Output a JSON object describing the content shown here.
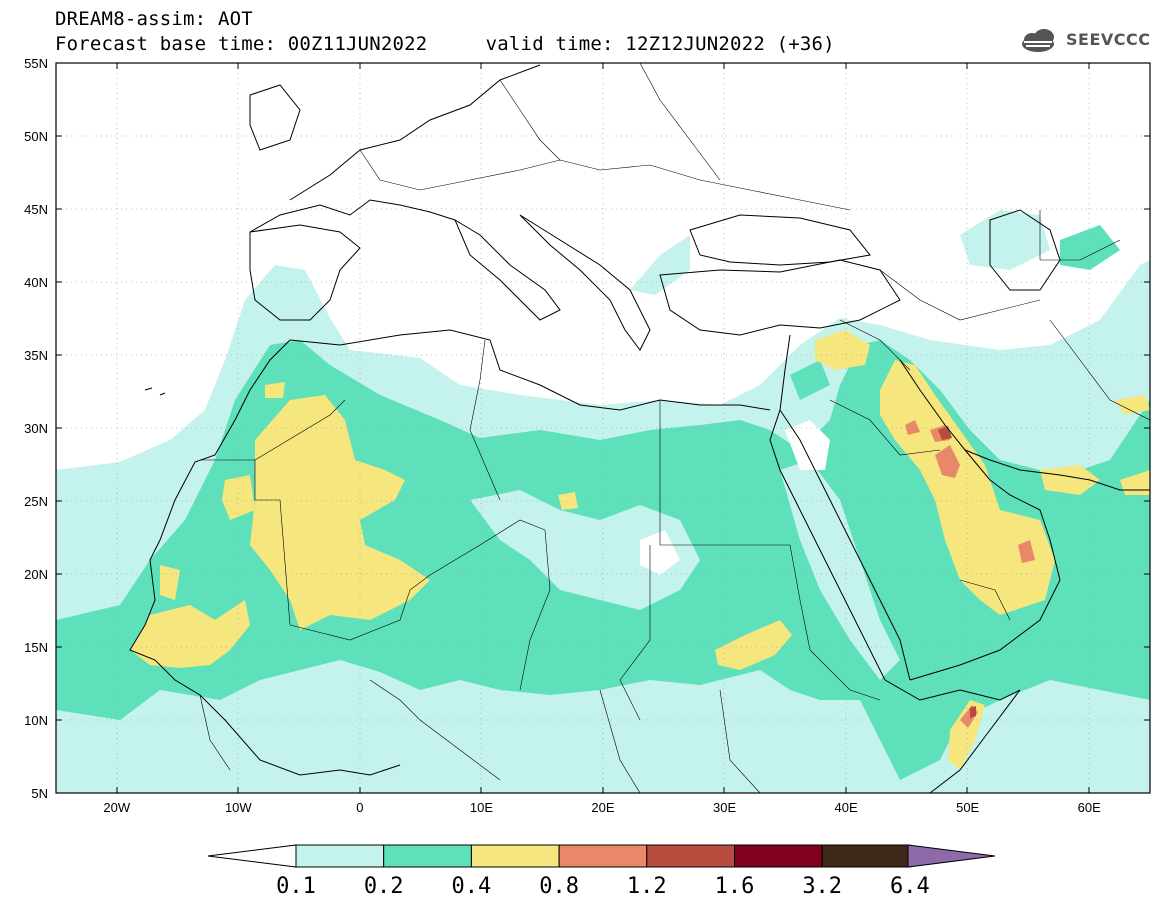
{
  "title": {
    "line1": "DREAM8-assim: AOT",
    "line2": "Forecast base time: 00Z11JUN2022     valid time: 12Z12JUN2022 (+36)"
  },
  "logo": {
    "text": "SEEVCCC",
    "icon": "cloud-icon"
  },
  "map": {
    "lon_range": [
      -25,
      65
    ],
    "lat_range": [
      5,
      55
    ],
    "lat_ticks": [
      "5N",
      "10N",
      "15N",
      "20N",
      "25N",
      "30N",
      "35N",
      "40N",
      "45N",
      "50N",
      "55N"
    ],
    "lon_ticks": [
      "20W",
      "10W",
      "0",
      "10E",
      "20E",
      "30E",
      "40E",
      "50E",
      "60E"
    ],
    "colors": {
      "c1": "#c4f2ec",
      "c2": "#5ee0bb",
      "c3": "#f6e67e",
      "c4": "#e9876a",
      "c5": "#b54c3e",
      "c6": "#800020",
      "c7": "#3d2817",
      "c8": "#8e6aa8"
    }
  },
  "colorbar": {
    "labels": [
      "0.1",
      "0.2",
      "0.4",
      "0.8",
      "1.2",
      "1.6",
      "3.2",
      "6.4"
    ],
    "colors": [
      "#c4f2ec",
      "#5ee0bb",
      "#f6e67e",
      "#e9876a",
      "#b54c3e",
      "#800020",
      "#3d2817"
    ],
    "under_color": "#ffffff",
    "over_color": "#8e6aa8"
  }
}
